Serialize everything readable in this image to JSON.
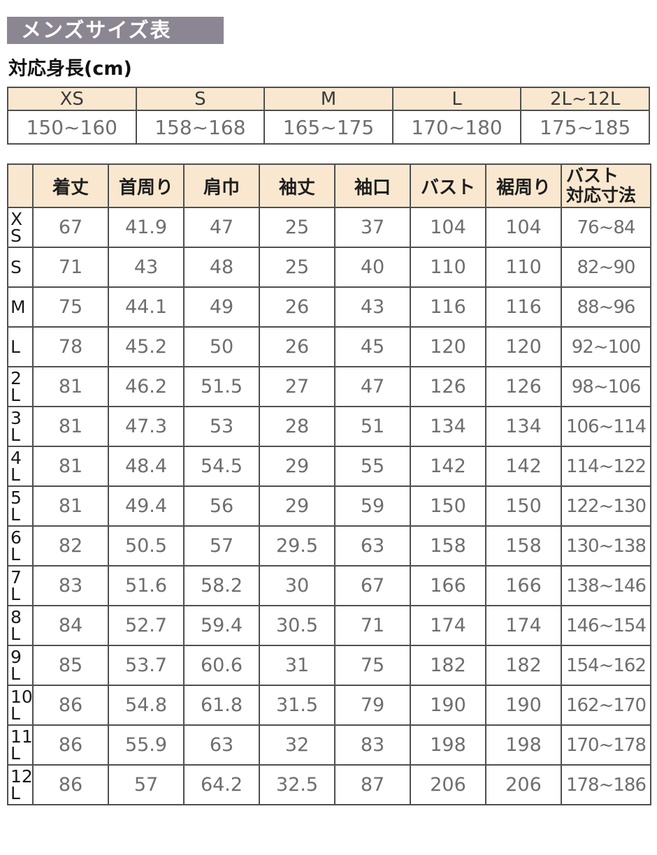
{
  "page": {
    "title": "メンズサイズ表",
    "subtitle": "対応身長(cm)"
  },
  "colors": {
    "title_bar_bg": "#8C8692",
    "title_bar_text": "#FFFFFF",
    "table_header_bg": "#F9E8CF",
    "table_border": "#4F4F4F",
    "value_text": "#6F6E6F",
    "label_text": "#1A1A1A"
  },
  "height_table": {
    "columns": [
      "XS",
      "S",
      "M",
      "L",
      "2L~12L"
    ],
    "values": [
      "150~160",
      "158~168",
      "165~175",
      "170~180",
      "175~185"
    ]
  },
  "size_table": {
    "columns": [
      "着丈",
      "首周り",
      "肩巾",
      "袖丈",
      "袖口",
      "バスト",
      "裾周り",
      "バスト\n対応寸法"
    ],
    "rows": [
      {
        "size": "X\nS",
        "values": [
          "67",
          "41.9",
          "47",
          "25",
          "37",
          "104",
          "104",
          "76~84"
        ]
      },
      {
        "size": "S",
        "values": [
          "71",
          "43",
          "48",
          "25",
          "40",
          "110",
          "110",
          "82~90"
        ]
      },
      {
        "size": "M",
        "values": [
          "75",
          "44.1",
          "49",
          "26",
          "43",
          "116",
          "116",
          "88~96"
        ]
      },
      {
        "size": "L",
        "values": [
          "78",
          "45.2",
          "50",
          "26",
          "45",
          "120",
          "120",
          "92~100"
        ]
      },
      {
        "size": "2\nL",
        "values": [
          "81",
          "46.2",
          "51.5",
          "27",
          "47",
          "126",
          "126",
          "98~106"
        ]
      },
      {
        "size": "3\nL",
        "values": [
          "81",
          "47.3",
          "53",
          "28",
          "51",
          "134",
          "134",
          "106~114"
        ]
      },
      {
        "size": "4\nL",
        "values": [
          "81",
          "48.4",
          "54.5",
          "29",
          "55",
          "142",
          "142",
          "114~122"
        ]
      },
      {
        "size": "5\nL",
        "values": [
          "81",
          "49.4",
          "56",
          "29",
          "59",
          "150",
          "150",
          "122~130"
        ]
      },
      {
        "size": "6\nL",
        "values": [
          "82",
          "50.5",
          "57",
          "29.5",
          "63",
          "158",
          "158",
          "130~138"
        ]
      },
      {
        "size": "7\nL",
        "values": [
          "83",
          "51.6",
          "58.2",
          "30",
          "67",
          "166",
          "166",
          "138~146"
        ]
      },
      {
        "size": "8\nL",
        "values": [
          "84",
          "52.7",
          "59.4",
          "30.5",
          "71",
          "174",
          "174",
          "146~154"
        ]
      },
      {
        "size": "9\nL",
        "values": [
          "85",
          "53.7",
          "60.6",
          "31",
          "75",
          "182",
          "182",
          "154~162"
        ]
      },
      {
        "size": "10\nL",
        "values": [
          "86",
          "54.8",
          "61.8",
          "31.5",
          "79",
          "190",
          "190",
          "162~170"
        ]
      },
      {
        "size": "11\nL",
        "values": [
          "86",
          "55.9",
          "63",
          "32",
          "83",
          "198",
          "198",
          "170~178"
        ]
      },
      {
        "size": "12\nL",
        "values": [
          "86",
          "57",
          "64.2",
          "32.5",
          "87",
          "206",
          "206",
          "178~186"
        ]
      }
    ]
  }
}
